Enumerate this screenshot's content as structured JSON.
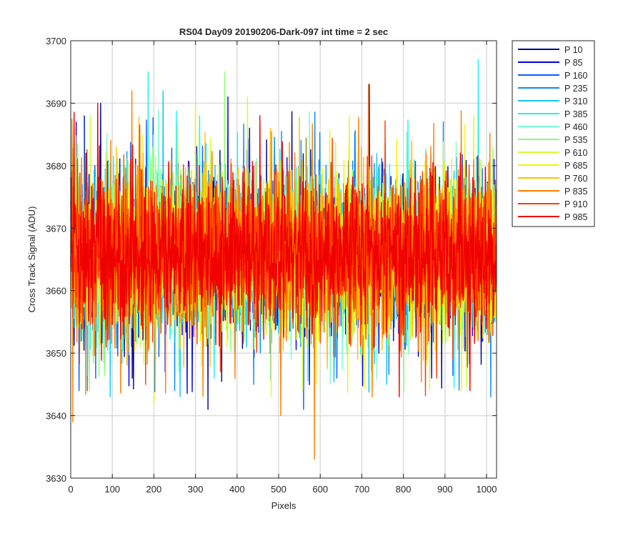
{
  "chart_data": {
    "type": "line",
    "title": "RS04 Day09 20190206-Dark-097 int time = 2 sec",
    "xlabel": "Pixels",
    "ylabel": "Cross Track Signal (ADU)",
    "xlim": [
      0,
      1024
    ],
    "ylim": [
      3630,
      3700
    ],
    "xticks": [
      0,
      100,
      200,
      300,
      400,
      500,
      600,
      700,
      800,
      900,
      1000
    ],
    "yticks": [
      3630,
      3640,
      3650,
      3660,
      3670,
      3680,
      3690,
      3700
    ],
    "grid": true,
    "legend_location": "outside-top-right",
    "series_count_points": 1024,
    "series": [
      {
        "name": "P 10",
        "color": "#00008f",
        "mean": 3666,
        "spread": 6.0,
        "spikes": [
          [
            72,
            3690
          ],
          [
            148,
            3646
          ],
          [
            330,
            3641
          ]
        ]
      },
      {
        "name": "P 85",
        "color": "#0000e6",
        "mean": 3666,
        "spread": 6.0,
        "spikes": [
          [
            378,
            3691
          ],
          [
            718,
            3693
          ],
          [
            868,
            3646
          ]
        ]
      },
      {
        "name": "P 160",
        "color": "#0f5cff",
        "mean": 3666,
        "spread": 6.0,
        "spikes": [
          [
            20,
            3644
          ],
          [
            560,
            3641
          ],
          [
            640,
            3646
          ]
        ]
      },
      {
        "name": "P 235",
        "color": "#0a8cf0",
        "mean": 3666,
        "spread": 6.0,
        "spikes": [
          [
            250,
            3644
          ],
          [
            440,
            3645
          ],
          [
            1010,
            3643
          ]
        ]
      },
      {
        "name": "P 310",
        "color": "#10c8f0",
        "mean": 3666,
        "spread": 6.0,
        "spikes": [
          [
            95,
            3643
          ],
          [
            222,
            3692
          ],
          [
            760,
            3645
          ]
        ]
      },
      {
        "name": "P 385",
        "color": "#20f0f0",
        "mean": 3666,
        "spread": 6.0,
        "spikes": [
          [
            186,
            3695
          ],
          [
            980,
            3697
          ],
          [
            345,
            3646
          ]
        ]
      },
      {
        "name": "P 460",
        "color": "#7afcd0",
        "mean": 3666,
        "spread": 6.0,
        "spikes": [
          [
            530,
            3649
          ],
          [
            260,
            3647
          ]
        ]
      },
      {
        "name": "P 535",
        "color": "#8cff73",
        "mean": 3666,
        "spread": 6.0,
        "spikes": [
          [
            370,
            3695
          ],
          [
            45,
            3644
          ]
        ]
      },
      {
        "name": "P 610",
        "color": "#d2ff30",
        "mean": 3666,
        "spread": 6.0,
        "spikes": [
          [
            425,
            3691
          ],
          [
            670,
            3688
          ],
          [
            590,
            3645
          ]
        ]
      },
      {
        "name": "P 685",
        "color": "#f5f500",
        "mean": 3666,
        "spread": 6.0,
        "spikes": [
          [
            200,
            3642
          ],
          [
            300,
            3690
          ],
          [
            940,
            3644
          ]
        ]
      },
      {
        "name": "P 760",
        "color": "#ffc000",
        "mean": 3666,
        "spread": 6.0,
        "spikes": [
          [
            110,
            3683
          ],
          [
            820,
            3684
          ],
          [
            480,
            3686
          ]
        ]
      },
      {
        "name": "P 835",
        "color": "#ff7f00",
        "mean": 3666,
        "spread": 6.0,
        "spikes": [
          [
            5,
            3639
          ],
          [
            586,
            3633
          ],
          [
            505,
            3640
          ],
          [
            147,
            3692
          ],
          [
            716,
            3693
          ],
          [
            725,
            3643
          ]
        ]
      },
      {
        "name": "P 910",
        "color": "#ff3a00",
        "mean": 3666,
        "spread": 6.0,
        "spikes": [
          [
            180,
            3645
          ],
          [
            880,
            3646
          ],
          [
            360,
            3647
          ]
        ]
      },
      {
        "name": "P 985",
        "color": "#f00000",
        "mean": 3666,
        "spread": 6.0,
        "spikes": [
          [
            65,
            3690
          ],
          [
            960,
            3644
          ],
          [
            790,
            3643
          ],
          [
            455,
            3688
          ]
        ]
      }
    ]
  }
}
